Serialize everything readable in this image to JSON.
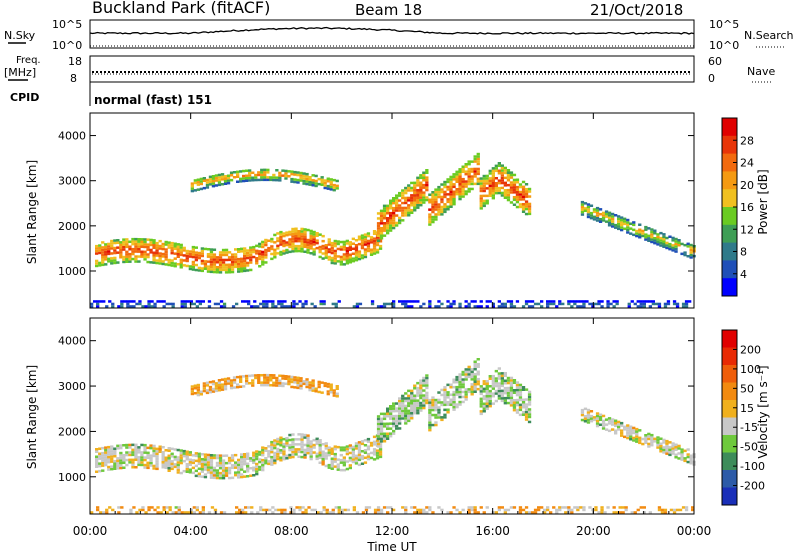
{
  "header": {
    "site_title": "Buckland Park (fitACF)",
    "beam": "Beam 18",
    "date": "21/Oct/2018"
  },
  "noise_panel": {
    "left_label": "N.Sky",
    "right_label": "N.Search",
    "ticks": [
      "10^5",
      "10^0"
    ]
  },
  "freq_panel": {
    "left_label_1": "Freq.",
    "left_label_2": "[MHz]",
    "left_ticks": [
      "18",
      "8"
    ],
    "right_label": "Nave",
    "right_ticks": [
      "60",
      "0"
    ],
    "cpid_label": "CPID",
    "cpid_text": "normal (fast) 151"
  },
  "colors": {
    "power_scale": [
      "#0000ff",
      "#1f4fb8",
      "#2f7a8a",
      "#3e9e55",
      "#6acb22",
      "#f0c020",
      "#f59a12",
      "#f26a0e",
      "#e83508",
      "#e00000"
    ],
    "velocity_scale": [
      "#1a2fb8",
      "#2d5ba8",
      "#3d8c5a",
      "#6ec93c",
      "#c8c8c8",
      "#f0b01e",
      "#f28a10",
      "#ef5e0a",
      "#e82a04",
      "#e00000"
    ]
  },
  "chart_data": [
    {
      "type": "heatmap",
      "panel": "power",
      "ylabel": "Slant Range [km]",
      "yticks": [
        "1000",
        "2000",
        "3000",
        "4000"
      ],
      "ylim": [
        180,
        4500
      ],
      "xlim": [
        "00:00",
        "24:00"
      ],
      "colorbar_label": "Power [dB]",
      "colorbar_ticks": [
        "28",
        "24",
        "20",
        "16",
        "12",
        "8",
        "4"
      ],
      "colorbar_range": [
        0,
        32
      ],
      "regions": [
        {
          "label": "main band",
          "t_start": 0.2,
          "t_end": 11.5,
          "range_center_km": 1450,
          "value": 27
        },
        {
          "label": "upper band",
          "t_start": 4.0,
          "t_end": 9.8,
          "range_center_km": 3100,
          "value": 22
        },
        {
          "label": "ramp",
          "t_start": 11.4,
          "t_end": 17.5,
          "range_center_km": 2500,
          "value": 27
        },
        {
          "label": "evening band",
          "t_start": 19.5,
          "t_end": 24.0,
          "range_center_km": 1750,
          "value": 20
        },
        {
          "label": "ground scatter",
          "t_start": 0.0,
          "t_end": 24.0,
          "range_center_km": 250,
          "value": 10
        }
      ]
    },
    {
      "type": "heatmap",
      "panel": "velocity",
      "ylabel": "Slant Range [km]",
      "yticks": [
        "1000",
        "2000",
        "3000",
        "4000"
      ],
      "ylim": [
        180,
        4500
      ],
      "xlim": [
        "00:00",
        "24:00"
      ],
      "xticks": [
        "00:00",
        "04:00",
        "08:00",
        "12:00",
        "16:00",
        "20:00",
        "00:00"
      ],
      "xlabel": "Time UT",
      "colorbar_label": "Velocity [m s⁻¹]",
      "colorbar_ticks": [
        "200",
        "100",
        "50",
        "15",
        "-15",
        "-50",
        "-100",
        "-200"
      ],
      "regions": [
        {
          "label": "main band",
          "t_start": 0.2,
          "t_end": 11.5,
          "range_center_km": 1450,
          "value": 0
        },
        {
          "label": "upper band",
          "t_start": 4.0,
          "t_end": 9.8,
          "range_center_km": 3100,
          "value": -30
        },
        {
          "label": "ramp",
          "t_start": 11.4,
          "t_end": 17.5,
          "range_center_km": 2500,
          "value": 10
        },
        {
          "label": "evening band",
          "t_start": 19.5,
          "t_end": 24.0,
          "range_center_km": 1750,
          "value": 0
        },
        {
          "label": "ground scatter",
          "t_start": 0.0,
          "t_end": 24.0,
          "range_center_km": 250,
          "value": -20
        }
      ]
    }
  ]
}
